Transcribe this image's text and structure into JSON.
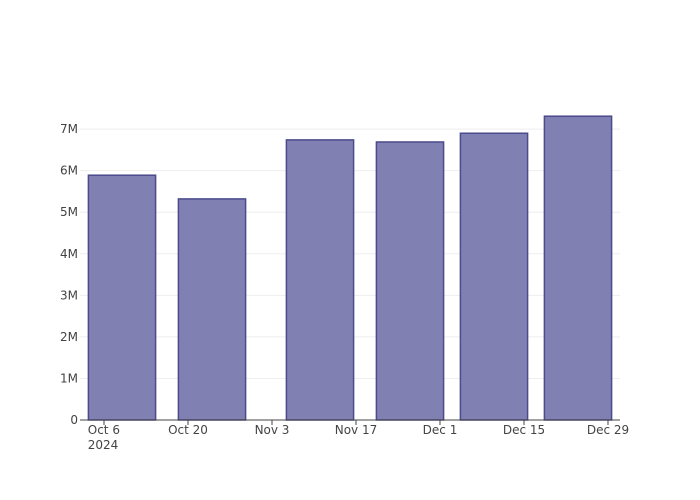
{
  "chart_data": {
    "type": "bar",
    "x": [
      "2024-10-09",
      "2024-10-24",
      "2024-11-11",
      "2024-11-26",
      "2024-12-10",
      "2024-12-24"
    ],
    "values": [
      5890000,
      5320000,
      6740000,
      6690000,
      6900000,
      7310000
    ],
    "color": "#8080b3",
    "edge_color": "#4b4a8c",
    "xlim": [
      "2024-10-02",
      "2024-12-31"
    ],
    "xticks": [
      {
        "value": "2024-10-06",
        "label": "Oct 6\n2024"
      },
      {
        "value": "2024-10-20",
        "label": "Oct 20"
      },
      {
        "value": "2024-11-03",
        "label": "Nov 3"
      },
      {
        "value": "2024-11-17",
        "label": "Nov 17"
      },
      {
        "value": "2024-12-01",
        "label": "Dec 1"
      },
      {
        "value": "2024-12-15",
        "label": "Dec 15"
      },
      {
        "value": "2024-12-29",
        "label": "Dec 29"
      }
    ],
    "ylim": [
      0,
      7700000
    ],
    "yticks": [
      0,
      {
        "value": 1000000,
        "label": "1M"
      },
      {
        "value": 2000000,
        "label": "2M"
      },
      {
        "value": 3000000,
        "label": "3M"
      },
      {
        "value": 4000000,
        "label": "4M"
      },
      {
        "value": 5000000,
        "label": "5M"
      },
      {
        "value": 6000000,
        "label": "6M"
      },
      {
        "value": 7000000,
        "label": "7M"
      }
    ],
    "grid": true
  }
}
